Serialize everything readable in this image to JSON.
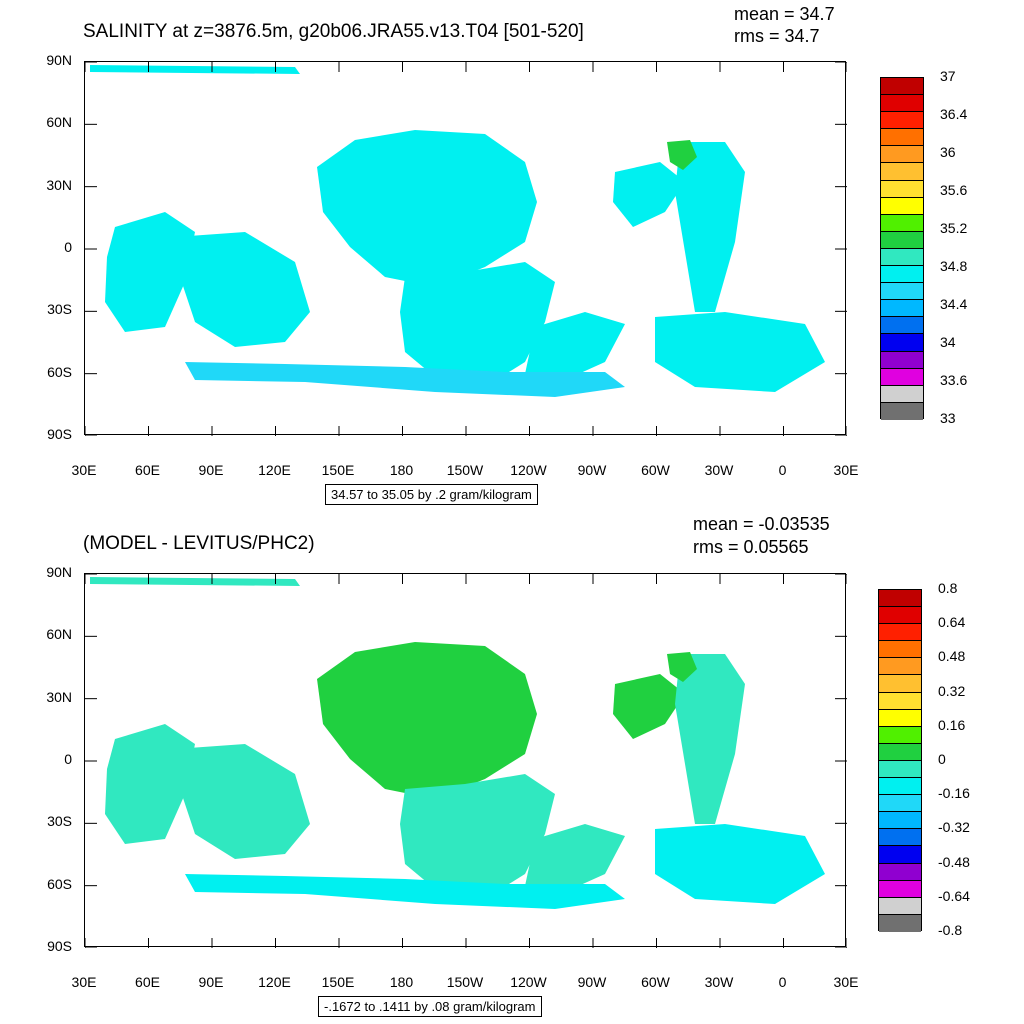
{
  "top": {
    "title": "SALINITY at z=3876.5m, g20b06.JRA55.v13.T04 [501-520]",
    "mean_label": "mean = 34.7",
    "rms_label": "rms = 34.7",
    "info_box": "34.57 to 35.05 by .2 gram/kilogram",
    "colorbar_labels": [
      "37",
      "36.4",
      "36",
      "35.6",
      "35.2",
      "34.8",
      "34.4",
      "34",
      "33.6",
      "33"
    ],
    "colorbar_colors": [
      "#c00000",
      "#e00000",
      "#ff2000",
      "#ff7000",
      "#ff9a20",
      "#ffc030",
      "#ffe030",
      "#ffff00",
      "#50f000",
      "#20d040",
      "#30e8c0",
      "#00f0f0",
      "#20d8f8",
      "#00b8ff",
      "#0070f0",
      "#0000f0",
      "#9000d0",
      "#e000e0",
      "#d0d0d0",
      "#707070"
    ],
    "fill_color": "#00f0f0",
    "deep_fill_color": "#20d8f8",
    "warm_fill_color": "#30e8c0",
    "high_fill_color": "#20d040"
  },
  "bottom": {
    "title": "(MODEL - LEVITUS/PHC2)",
    "mean_label": "mean = -0.03535",
    "rms_label": "rms = 0.05565",
    "info_box": "-.1672 to .1411 by .08 gram/kilogram",
    "colorbar_labels": [
      "0.8",
      "0.64",
      "0.48",
      "0.32",
      "0.16",
      "0",
      "-0.16",
      "-0.32",
      "-0.48",
      "-0.64",
      "-0.8"
    ],
    "colorbar_colors": [
      "#c00000",
      "#e00000",
      "#ff2000",
      "#ff7000",
      "#ff9a20",
      "#ffc030",
      "#ffe030",
      "#ffff00",
      "#50f000",
      "#20d040",
      "#30e8c0",
      "#00f0f0",
      "#20d8f8",
      "#00b8ff",
      "#0070f0",
      "#0000f0",
      "#9000d0",
      "#e000e0",
      "#d0d0d0",
      "#707070"
    ],
    "fill_color": "#30e8c0",
    "pos_fill_color": "#20d040",
    "neg_fill_color": "#00f0f0"
  },
  "axes": {
    "y_labels": [
      "90N",
      "60N",
      "30N",
      "0",
      "30S",
      "60S",
      "90S"
    ],
    "x_labels": [
      "30E",
      "60E",
      "90E",
      "120E",
      "150E",
      "180",
      "150W",
      "120W",
      "90W",
      "60W",
      "30W",
      "0",
      "30E"
    ]
  }
}
